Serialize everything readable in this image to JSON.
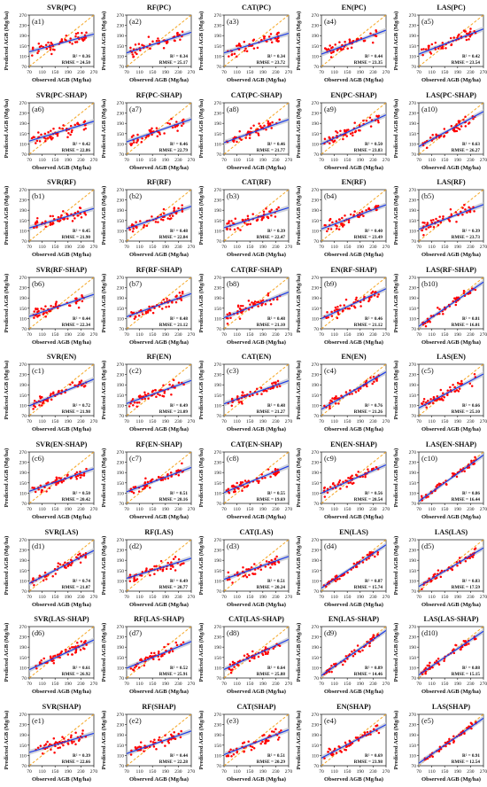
{
  "axis": {
    "xlabel": "Observed AGB (Mg/ha)",
    "ylabel": "Predicted AGB (Mg/ha)",
    "xlim": [
      70,
      270
    ],
    "ylim": [
      70,
      270
    ],
    "xticks": [
      70,
      110,
      150,
      190,
      230,
      270
    ],
    "yticks": [
      70,
      110,
      150,
      190,
      230,
      270
    ],
    "colors": {
      "points": "#ff0000",
      "fit": "#1f3ee6",
      "band": "#c3c6cf",
      "identity": "#f5a623"
    }
  },
  "chart_data": [
    {
      "type": "scatter",
      "title": "SVR(PC)",
      "tag": "(a1)",
      "r2_text": "R² = 0.36",
      "rmse_text": "RMSE = 24.50",
      "fit": [
        127,
        196
      ],
      "seed": 1
    },
    {
      "type": "scatter",
      "title": "RF(PC)",
      "tag": "(a2)",
      "r2_text": "R² = 0.34",
      "rmse_text": "RMSE = 25.17",
      "fit": [
        123,
        203
      ],
      "seed": 2
    },
    {
      "type": "scatter",
      "title": "CAT(PC)",
      "tag": "(a3)",
      "r2_text": "R² = 0.34",
      "rmse_text": "RMSE = 23.72",
      "fit": [
        123,
        199
      ],
      "seed": 3
    },
    {
      "type": "scatter",
      "title": "EN(PC)",
      "tag": "(a4)",
      "r2_text": "R² = 0.44",
      "rmse_text": "RMSE = 23.35",
      "fit": [
        118,
        211
      ],
      "seed": 4
    },
    {
      "type": "scatter",
      "title": "LAS(PC)",
      "tag": "(a5)",
      "r2_text": "R² = 0.42",
      "rmse_text": "RMSE = 23.54",
      "fit": [
        118,
        216
      ],
      "seed": 5
    },
    {
      "type": "scatter",
      "title": "SVR(PC-SHAP)",
      "tag": "(a6)",
      "r2_text": "R² = 0.42",
      "rmse_text": "RMSE = 22.86",
      "fit": [
        121,
        198
      ],
      "seed": 6
    },
    {
      "type": "scatter",
      "title": "RF(PC-SHAP)",
      "tag": "(a7)",
      "r2_text": "R² = 0.46",
      "rmse_text": "RMSE = 22.79",
      "fit": [
        118,
        206
      ],
      "seed": 7
    },
    {
      "type": "scatter",
      "title": "CAT(PC-SHAP)",
      "tag": "(a8)",
      "r2_text": "R² = 0.46",
      "rmse_text": "RMSE = 21.77",
      "fit": [
        115,
        205
      ],
      "seed": 8
    },
    {
      "type": "scatter",
      "title": "EN(PC-SHAP)",
      "tag": "(a9)",
      "r2_text": "R² = 0.50",
      "rmse_text": "RMSE = 23.83",
      "fit": [
        110,
        223
      ],
      "seed": 9
    },
    {
      "type": "scatter",
      "title": "LAS(PC-SHAP)",
      "tag": "(a10)",
      "r2_text": "R² = 0.63",
      "rmse_text": "RMSE = 26.27",
      "fit": [
        100,
        236
      ],
      "seed": 10
    },
    {
      "type": "scatter",
      "title": "SVR(RF)",
      "tag": "(b1)",
      "r2_text": "R² = 0.45",
      "rmse_text": "RMSE = 21.90",
      "fit": [
        121,
        197
      ],
      "seed": 11
    },
    {
      "type": "scatter",
      "title": "RF(RF)",
      "tag": "(b2)",
      "r2_text": "R² = 0.48",
      "rmse_text": "RMSE = 22.84",
      "fit": [
        118,
        205
      ],
      "seed": 12
    },
    {
      "type": "scatter",
      "title": "CAT(RF)",
      "tag": "(b3)",
      "r2_text": "R² = 0.39",
      "rmse_text": "RMSE = 22.47",
      "fit": [
        122,
        200
      ],
      "seed": 13
    },
    {
      "type": "scatter",
      "title": "EN(RF)",
      "tag": "(b4)",
      "r2_text": "R² = 0.40",
      "rmse_text": "RMSE = 23.49",
      "fit": [
        117,
        211
      ],
      "seed": 14
    },
    {
      "type": "scatter",
      "title": "LAS(RF)",
      "tag": "(b5)",
      "r2_text": "R² = 0.39",
      "rmse_text": "RMSE = 23.73",
      "fit": [
        116,
        212
      ],
      "seed": 15
    },
    {
      "type": "scatter",
      "title": "SVR(RF-SHAP)",
      "tag": "(b6)",
      "r2_text": "R² = 0.44",
      "rmse_text": "RMSE = 22.34",
      "fit": [
        118,
        204
      ],
      "seed": 16
    },
    {
      "type": "scatter",
      "title": "RF(RF-SHAP)",
      "tag": "(b7)",
      "r2_text": "R² = 0.48",
      "rmse_text": "RMSE = 21.12",
      "fit": [
        117,
        207
      ],
      "seed": 17
    },
    {
      "type": "scatter",
      "title": "CAT(RF-SHAP)",
      "tag": "(b8)",
      "r2_text": "R² = 0.48",
      "rmse_text": "RMSE = 21.10",
      "fit": [
        113,
        213
      ],
      "seed": 18
    },
    {
      "type": "scatter",
      "title": "EN(RF-SHAP)",
      "tag": "(b9)",
      "r2_text": "R² = 0.46",
      "rmse_text": "RMSE = 21.12",
      "fit": [
        110,
        226
      ],
      "seed": 19
    },
    {
      "type": "scatter",
      "title": "LAS(RF-SHAP)",
      "tag": "(b10)",
      "r2_text": "R² = 0.81",
      "rmse_text": "RMSE = 16.01",
      "fit": [
        80,
        252
      ],
      "seed": 20
    },
    {
      "type": "scatter",
      "title": "SVR(EN)",
      "tag": "(c1)",
      "r2_text": "R² = 0.72",
      "rmse_text": "RMSE = 21.98",
      "fit": [
        108,
        212
      ],
      "seed": 21
    },
    {
      "type": "scatter",
      "title": "RF(EN)",
      "tag": "(c2)",
      "r2_text": "R² = 0.49",
      "rmse_text": "RMSE = 21.09",
      "fit": [
        117,
        207
      ],
      "seed": 22
    },
    {
      "type": "scatter",
      "title": "CAT(EN)",
      "tag": "(c3)",
      "r2_text": "R² = 0.48",
      "rmse_text": "RMSE = 21.27",
      "fit": [
        116,
        206
      ],
      "seed": 23
    },
    {
      "type": "scatter",
      "title": "EN(EN)",
      "tag": "(c4)",
      "r2_text": "R² = 0.76",
      "rmse_text": "RMSE = 21.26",
      "fit": [
        95,
        240
      ],
      "seed": 24
    },
    {
      "type": "scatter",
      "title": "LAS(EN)",
      "tag": "(c5)",
      "r2_text": "R² = 0.66",
      "rmse_text": "RMSE = 25.10",
      "fit": [
        100,
        232
      ],
      "seed": 25
    },
    {
      "type": "scatter",
      "title": "SVR(EN-SHAP)",
      "tag": "(c6)",
      "r2_text": "R² = 0.50",
      "rmse_text": "RMSE = 20.42",
      "fit": [
        117,
        205
      ],
      "seed": 26
    },
    {
      "type": "scatter",
      "title": "RF(EN-SHAP)",
      "tag": "(c7)",
      "r2_text": "R² = 0.51",
      "rmse_text": "RMSE = 20.16",
      "fit": [
        115,
        210
      ],
      "seed": 27
    },
    {
      "type": "scatter",
      "title": "CAT(EN-SHAP)",
      "tag": "(c8)",
      "r2_text": "R² = 0.55",
      "rmse_text": "RMSE = 19.69",
      "fit": [
        112,
        215
      ],
      "seed": 28
    },
    {
      "type": "scatter",
      "title": "EN(EN-SHAP)",
      "tag": "(c9)",
      "r2_text": "R² = 0.56",
      "rmse_text": "RMSE = 20.54",
      "fit": [
        110,
        220
      ],
      "seed": 29
    },
    {
      "type": "scatter",
      "title": "LAS(EN-SHAP)",
      "tag": "(c10)",
      "r2_text": "R² = 0.86",
      "rmse_text": "RMSE = 16.44",
      "fit": [
        78,
        258
      ],
      "seed": 30
    },
    {
      "type": "scatter",
      "title": "SVR(LAS)",
      "tag": "(d1)",
      "r2_text": "R² = 0.74",
      "rmse_text": "RMSE = 21.07",
      "fit": [
        100,
        228
      ],
      "seed": 31
    },
    {
      "type": "scatter",
      "title": "RF(LAS)",
      "tag": "(d2)",
      "r2_text": "R² = 0.49",
      "rmse_text": "RMSE = 20.77",
      "fit": [
        120,
        198
      ],
      "seed": 32
    },
    {
      "type": "scatter",
      "title": "CAT(LAS)",
      "tag": "(d3)",
      "r2_text": "R² = 0.51",
      "rmse_text": "RMSE = 20.24",
      "fit": [
        116,
        205
      ],
      "seed": 33
    },
    {
      "type": "scatter",
      "title": "EN(LAS)",
      "tag": "(d4)",
      "r2_text": "R² = 0.87",
      "rmse_text": "RMSE = 15.74",
      "fit": [
        82,
        250
      ],
      "seed": 34
    },
    {
      "type": "scatter",
      "title": "LAS(LAS)",
      "tag": "(d5)",
      "r2_text": "R² = 0.83",
      "rmse_text": "RMSE = 17.59",
      "fit": [
        88,
        238
      ],
      "seed": 35
    },
    {
      "type": "scatter",
      "title": "SVR(LAS-SHAP)",
      "tag": "(d6)",
      "r2_text": "R² = 0.61",
      "rmse_text": "RMSE = 26.92",
      "fit": [
        102,
        218
      ],
      "seed": 36
    },
    {
      "type": "scatter",
      "title": "RF(LAS-SHAP)",
      "tag": "(d7)",
      "r2_text": "R² = 0.52",
      "rmse_text": "RMSE = 25.91",
      "fit": [
        108,
        212
      ],
      "seed": 37
    },
    {
      "type": "scatter",
      "title": "CAT(LAS-SHAP)",
      "tag": "(d8)",
      "r2_text": "R² = 0.64",
      "rmse_text": "RMSE = 25.88",
      "fit": [
        103,
        220
      ],
      "seed": 38
    },
    {
      "type": "scatter",
      "title": "EN(LAS-SHAP)",
      "tag": "(d9)",
      "r2_text": "R² = 0.89",
      "rmse_text": "RMSE = 14.46",
      "fit": [
        80,
        255
      ],
      "seed": 39
    },
    {
      "type": "scatter",
      "title": "LAS(LAS-SHAP)",
      "tag": "(d10)",
      "r2_text": "R² = 0.88",
      "rmse_text": "RMSE = 15.15",
      "fit": [
        82,
        252
      ],
      "seed": 40
    },
    {
      "type": "scatter",
      "title": "SVR(SHAP)",
      "tag": "(e1)",
      "r2_text": "R² = 0.39",
      "rmse_text": "RMSE = 22.66",
      "fit": [
        122,
        196
      ],
      "seed": 41
    },
    {
      "type": "scatter",
      "title": "RF(SHAP)",
      "tag": "(e2)",
      "r2_text": "R² = 0.44",
      "rmse_text": "RMSE = 22.28",
      "fit": [
        117,
        205
      ],
      "seed": 42
    },
    {
      "type": "scatter",
      "title": "CAT(SHAP)",
      "tag": "(e3)",
      "r2_text": "R² = 0.51",
      "rmse_text": "RMSE = 20.29",
      "fit": [
        113,
        210
      ],
      "seed": 43
    },
    {
      "type": "scatter",
      "title": "EN(SHAP)",
      "tag": "(e4)",
      "r2_text": "R² = 0.69",
      "rmse_text": "RMSE = 23.98",
      "fit": [
        100,
        230
      ],
      "seed": 44
    },
    {
      "type": "scatter",
      "title": "LAS(SHAP)",
      "tag": "(e5)",
      "r2_text": "R² = 0.91",
      "rmse_text": "RMSE = 12.54",
      "fit": [
        80,
        255
      ],
      "seed": 45
    }
  ]
}
